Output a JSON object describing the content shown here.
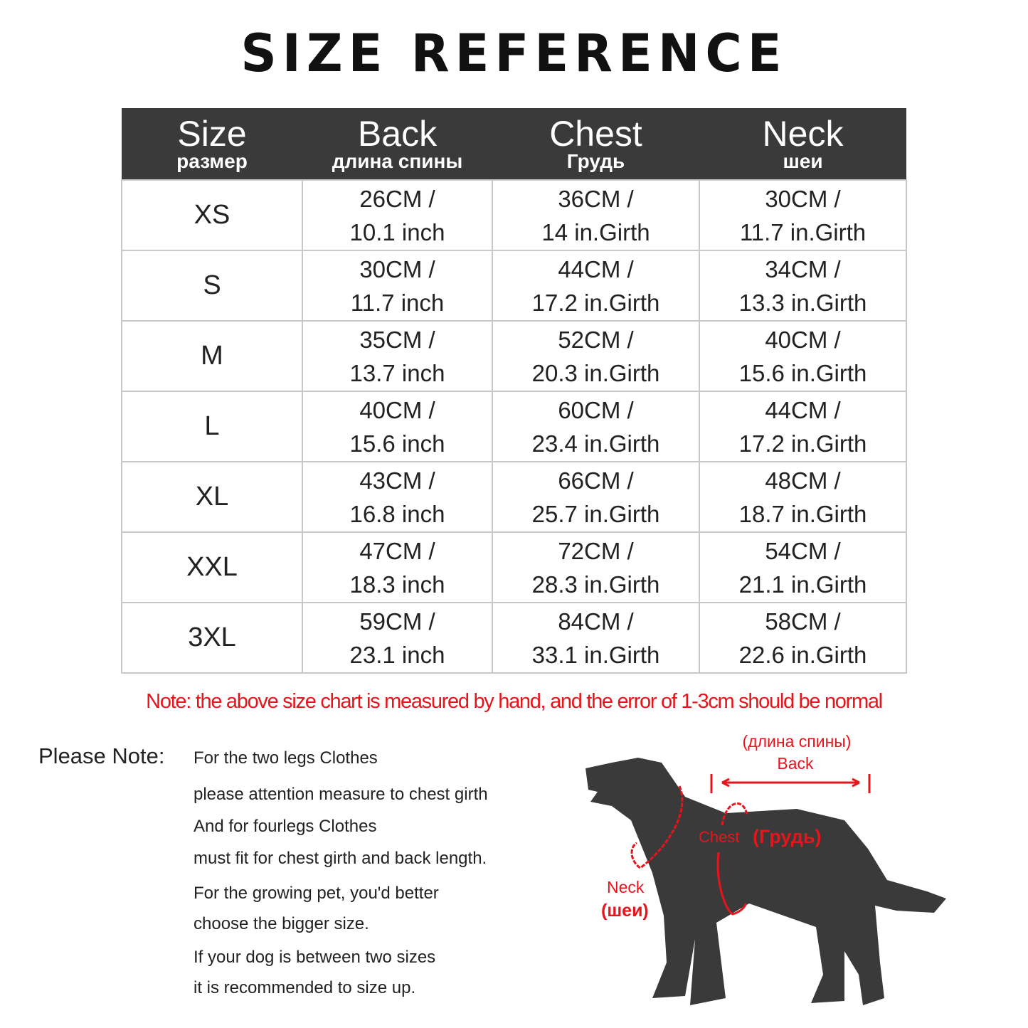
{
  "title": "SIZE REFERENCE",
  "table": {
    "headers": [
      {
        "en": "Size",
        "ru": "размер"
      },
      {
        "en": "Back",
        "ru": "длина спины"
      },
      {
        "en": "Chest",
        "ru": "Грудь"
      },
      {
        "en": "Neck",
        "ru": "шеи"
      }
    ],
    "rows": [
      {
        "size": "XS",
        "back": [
          "26CM /",
          "10.1 inch"
        ],
        "chest": [
          "36CM /",
          "14 in.Girth"
        ],
        "neck": [
          "30CM /",
          "11.7 in.Girth"
        ]
      },
      {
        "size": "S",
        "back": [
          "30CM /",
          "11.7 inch"
        ],
        "chest": [
          "44CM /",
          "17.2 in.Girth"
        ],
        "neck": [
          "34CM /",
          "13.3 in.Girth"
        ]
      },
      {
        "size": "M",
        "back": [
          "35CM /",
          "13.7 inch"
        ],
        "chest": [
          "52CM /",
          "20.3 in.Girth"
        ],
        "neck": [
          "40CM /",
          "15.6 in.Girth"
        ]
      },
      {
        "size": "L",
        "back": [
          "40CM /",
          "15.6 inch"
        ],
        "chest": [
          "60CM /",
          "23.4 in.Girth"
        ],
        "neck": [
          "44CM /",
          "17.2 in.Girth"
        ]
      },
      {
        "size": "XL",
        "back": [
          "43CM /",
          "16.8 inch"
        ],
        "chest": [
          "66CM /",
          "25.7 in.Girth"
        ],
        "neck": [
          "48CM /",
          "18.7 in.Girth"
        ]
      },
      {
        "size": "XXL",
        "back": [
          "47CM /",
          "18.3 inch"
        ],
        "chest": [
          "72CM /",
          "28.3 in.Girth"
        ],
        "neck": [
          "54CM /",
          "21.1 in.Girth"
        ]
      },
      {
        "size": "3XL",
        "back": [
          "59CM /",
          "23.1 inch"
        ],
        "chest": [
          "84CM /",
          "33.1 in.Girth"
        ],
        "neck": [
          "58CM /",
          "22.6 in.Girth"
        ]
      }
    ]
  },
  "note_red": "Note: the above size chart is measured by hand, and the error of 1-3cm should be normal",
  "please_note": {
    "label": "Please Note:",
    "lines": [
      "For the two legs Clothes",
      "please attention measure to chest girth",
      "And for fourlegs Clothes",
      "must fit for chest girth and back length.",
      "For the growing pet, you'd better",
      "choose the bigger size.",
      "If your dog is between two sizes",
      "it is recommended to size up."
    ]
  },
  "diagram": {
    "back_ru": "(длина спины)",
    "back_en": "Back",
    "chest_en": "Chest",
    "chest_ru": "(Грудь)",
    "neck_en": "Neck",
    "neck_ru": "(шеи)"
  },
  "colors": {
    "header_bg": "#3a3a3a",
    "accent_red": "#e8141c",
    "dog": "#3a3a3a"
  }
}
